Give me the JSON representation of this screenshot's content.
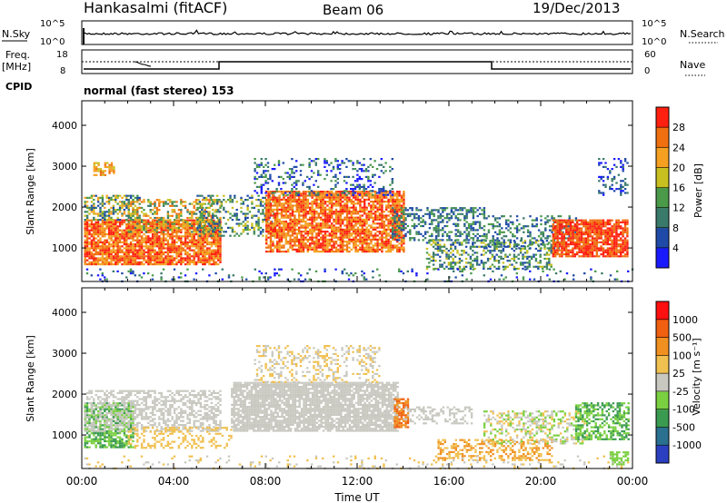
{
  "header": {
    "station": "Hankasalmi (fitACF)",
    "beam": "Beam 06",
    "date": "19/Dec/2013"
  },
  "nsky_panel": {
    "left_label": "N.Sky",
    "left_ticks": [
      "10^5",
      "10^0"
    ],
    "right_ticks": [
      "10^5",
      "10^0"
    ],
    "right_label": "N.Search"
  },
  "freq_panel": {
    "left_label_1": "Freq.",
    "left_label_2": "[MHz]",
    "left_ticks": [
      "18",
      "8"
    ],
    "right_ticks": [
      "60",
      "0"
    ],
    "right_label": "Nave",
    "cpid_label": "CPID",
    "cpid_text": "normal (fast stereo) 153"
  },
  "chart_data": [
    {
      "type": "heatmap",
      "title": "",
      "ylabel": "Slant Range [km]",
      "xlabel": "",
      "yticks": [
        "1000",
        "2000",
        "3000",
        "4000"
      ],
      "ylim": [
        180,
        4600
      ],
      "xlim": [
        0,
        24
      ],
      "colorbar": {
        "label": "Power [dB]",
        "ticks": [
          "4",
          "8",
          "12",
          "16",
          "20",
          "24",
          "28"
        ],
        "colors": [
          "#1a1aff",
          "#1f4aa8",
          "#3a7a6a",
          "#4a9a4a",
          "#c8c020",
          "#f5a020",
          "#f07010",
          "#ff2010"
        ]
      }
    },
    {
      "type": "heatmap",
      "title": "",
      "ylabel": "Slant Range [km]",
      "xlabel": "Time UT",
      "xticks": [
        "00:00",
        "04:00",
        "08:00",
        "12:00",
        "16:00",
        "20:00",
        "00:00"
      ],
      "yticks": [
        "1000",
        "2000",
        "3000",
        "4000"
      ],
      "ylim": [
        180,
        4600
      ],
      "xlim": [
        0,
        24
      ],
      "colorbar": {
        "label": "Velocity [m s⁻¹]",
        "ticks": [
          "1000",
          "500",
          "100",
          "25",
          "-25",
          "-100",
          "-500",
          "-1000"
        ],
        "colors": [
          "#2a40c0",
          "#2a7090",
          "#3a9a50",
          "#7ad040",
          "#c8c8c0",
          "#f0c050",
          "#f09020",
          "#f06010",
          "#ff1010"
        ]
      }
    }
  ]
}
